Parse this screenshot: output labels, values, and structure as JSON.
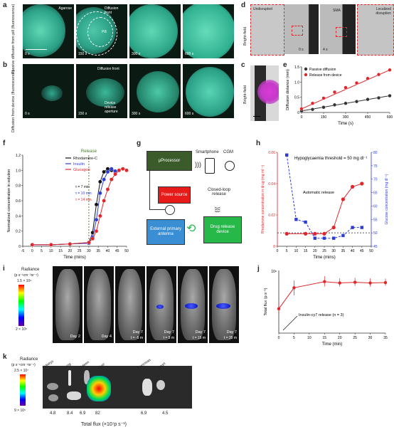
{
  "panels": {
    "a": {
      "label": "a",
      "side_label": "Passive diffusion from pill (fluorescence)",
      "frames": [
        {
          "time": "0 s",
          "note": "Agarose"
        },
        {
          "time": "150 s",
          "note": "Diffusion front",
          "note2": "Pill"
        },
        {
          "time": "300 s"
        },
        {
          "time": "600 s"
        }
      ]
    },
    "b": {
      "label": "b",
      "side_label": "Diffusion from device (fluorescence)",
      "frames": [
        {
          "time": "0 s"
        },
        {
          "time": "150 s",
          "note": "Diffusion front",
          "note2": "Device release aperture"
        },
        {
          "time": "300 s"
        },
        {
          "time": "600 s"
        }
      ]
    },
    "c": {
      "label": "c",
      "side_label": "Bright-field"
    },
    "d": {
      "label": "d",
      "side_label": "Bright-field",
      "frames": [
        {
          "note": "Undisrupted"
        },
        {
          "time": "0 s"
        },
        {
          "time": "4 s",
          "note": "SMA"
        },
        {
          "note": "Localized disruption"
        }
      ]
    },
    "e": {
      "label": "e"
    },
    "f": {
      "label": "f"
    },
    "g": {
      "label": "g",
      "processor": "μProcessor",
      "smartphone": "Smartphone",
      "cgm": "CGM",
      "power": "Power source",
      "closed_loop": "Closed-loop release",
      "antenna": "External primary antenna",
      "device": "Drug release device"
    },
    "h": {
      "label": "h"
    },
    "i": {
      "label": "i",
      "scale_title": "Radiance",
      "scale_unit": "(p s⁻¹cm⁻²sr⁻¹)",
      "scale_max": "1.5 × 10⁶",
      "scale_min": "2 × 10⁵",
      "frames": [
        {
          "day": "Day 2"
        },
        {
          "day": "Day 4"
        },
        {
          "day": "Day 7",
          "t": "t = -5 m"
        },
        {
          "day": "Day 7",
          "t": "t = 5 m"
        },
        {
          "day": "Day 7",
          "t": "t = 15 m"
        },
        {
          "day": "Day 7",
          "t": "t = 35 m"
        }
      ]
    },
    "j": {
      "label": "j"
    },
    "k": {
      "label": "k",
      "scale_title": "Radiance",
      "scale_unit": "(p s⁻¹cm⁻²sr⁻¹)",
      "scale_max": "2.5 × 10⁷",
      "scale_min": "9 × 10⁵",
      "organs": [
        "Kidneys",
        "Lung",
        "Spleen",
        "Liver",
        "Pancreas",
        "Heart"
      ],
      "values": [
        "4.8",
        "8.4",
        "6.9",
        "82",
        "6.9",
        "4.5"
      ],
      "xlabel": "Total flux (×10⁷p s⁻¹)"
    }
  },
  "chart_data": [
    {
      "panel": "e",
      "type": "scatter",
      "xlabel": "Time (s)",
      "ylabel": "Diffusion distance (mm)",
      "xlim": [
        0,
        600
      ],
      "ylim": [
        0,
        1.5
      ],
      "xticks": [
        "0",
        "150",
        "300",
        "450",
        "600"
      ],
      "yticks": [
        "0",
        "0.5",
        "1.0",
        "1.5"
      ],
      "legend_position": "top-left",
      "series": [
        {
          "name": "Passive diffusion",
          "color": "#333333",
          "x": [
            0,
            75,
            150,
            225,
            300,
            375,
            450,
            525,
            600
          ],
          "y": [
            0.05,
            0.1,
            0.17,
            0.25,
            0.3,
            0.36,
            0.43,
            0.48,
            0.55
          ]
        },
        {
          "name": "Release from device",
          "color": "#e0262b",
          "x": [
            0,
            75,
            150,
            225,
            300,
            375,
            450,
            525,
            600
          ],
          "y": [
            0.12,
            0.3,
            0.47,
            0.67,
            0.82,
            0.97,
            1.12,
            1.25,
            1.4
          ]
        }
      ]
    },
    {
      "panel": "f",
      "type": "line",
      "xlabel": "Time (mins)",
      "ylabel": "Normalized concentration in solution",
      "xlim": [
        -5,
        50
      ],
      "ylim": [
        0,
        1.2
      ],
      "xticks": [
        "-5",
        "0",
        "5",
        "10",
        "15",
        "20",
        "25",
        "30",
        "35",
        "40",
        "45",
        "50"
      ],
      "yticks": [
        "0",
        "0.2",
        "0.4",
        "0.6",
        "0.8",
        "1.0",
        "1.2"
      ],
      "release_x": 30,
      "release_label": "Release",
      "annotations": [
        "τ = 7 min",
        "τ = 10 min",
        "τ = 14 min"
      ],
      "series": [
        {
          "name": "Rhodamine-C",
          "color": "#111111",
          "x": [
            0,
            10,
            20,
            30,
            32,
            34,
            36,
            38,
            40,
            42,
            44
          ],
          "y": [
            0.02,
            0.02,
            0.03,
            0.05,
            0.18,
            0.55,
            0.85,
            0.98,
            1.02,
            1.0,
            0.98
          ]
        },
        {
          "name": "Insulin",
          "color": "#2b3bd6",
          "x": [
            0,
            10,
            20,
            30,
            32,
            34,
            36,
            38,
            40,
            42,
            44,
            46
          ],
          "y": [
            0.02,
            0.02,
            0.03,
            0.04,
            0.12,
            0.35,
            0.7,
            0.88,
            0.98,
            1.02,
            0.99,
            1.0
          ]
        },
        {
          "name": "Glucagon",
          "color": "#e0262b",
          "x": [
            0,
            10,
            20,
            30,
            32,
            34,
            36,
            38,
            40,
            42,
            44,
            46,
            48,
            50
          ],
          "y": [
            0.02,
            0.02,
            0.03,
            0.05,
            0.1,
            0.2,
            0.4,
            0.6,
            0.75,
            0.88,
            0.95,
            1.0,
            1.02,
            1.0
          ]
        }
      ]
    },
    {
      "panel": "h",
      "type": "scatter",
      "xlabel": "Time (mins)",
      "ylabel_left": "Rhodamine concentration in drug (mg ml⁻¹)",
      "ylabel_right": "Glucose concentration (mg dl⁻¹)",
      "xlim": [
        0,
        50
      ],
      "ylim_left": [
        0,
        0.06
      ],
      "ylim_right": [
        45,
        80
      ],
      "xticks": [
        "0",
        "5",
        "10",
        "15",
        "20",
        "25",
        "30",
        "35",
        "40",
        "45",
        "50"
      ],
      "yticks_left": [
        "0",
        "0.02",
        "0.04",
        "0.06"
      ],
      "yticks_right": [
        "45",
        "50",
        "55",
        "60",
        "65",
        "70",
        "75",
        "80"
      ],
      "threshold_label": "Hypoglycaemia threshold = 50 mg dl⁻¹",
      "release_label": "Automatic release",
      "series": [
        {
          "name": "Rhodamine",
          "color": "#e0262b",
          "x": [
            5,
            15,
            20,
            25,
            30,
            35,
            40,
            45
          ],
          "y": [
            0.008,
            0.008,
            0.008,
            0.008,
            0.012,
            0.03,
            0.038,
            0.04
          ]
        },
        {
          "name": "Glucose",
          "color": "#2b3bd6",
          "x": [
            5,
            10,
            15,
            20,
            25,
            30,
            35,
            40,
            45
          ],
          "y": [
            79,
            55,
            54,
            48,
            48,
            48,
            49,
            52,
            52
          ]
        }
      ]
    },
    {
      "panel": "j",
      "type": "line",
      "xlabel": "Time (min)",
      "ylabel": "Total flux (p s⁻¹)",
      "xlim": [
        0,
        35
      ],
      "ylim_log": [
        6,
        8
      ],
      "xticks": [
        "0",
        "5",
        "10",
        "15",
        "20",
        "25",
        "30",
        "35"
      ],
      "yticks": [
        "10⁸"
      ],
      "annotation": "Insulin-cy7 release (n = 3)",
      "series": [
        {
          "name": "Insulin-cy7",
          "color": "#e0262b",
          "x": [
            0,
            5,
            15,
            20,
            25,
            30,
            35
          ],
          "y": [
            0.6,
            2.8,
            4.4,
            4.0,
            4.2,
            4.0,
            4.1
          ],
          "err": [
            0.3,
            2.0,
            2.2,
            1.6,
            1.6,
            1.6,
            1.4
          ]
        }
      ]
    }
  ]
}
